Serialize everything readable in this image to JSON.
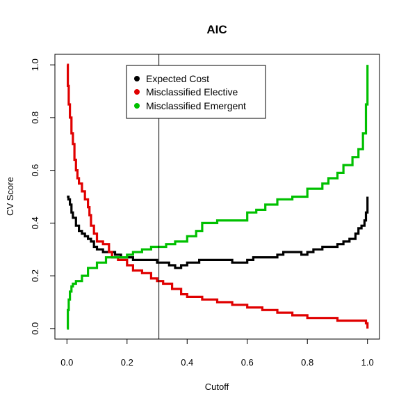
{
  "chart_data": {
    "type": "line",
    "title": "AIC",
    "xlabel": "Cutoff",
    "ylabel": "CV Score",
    "xlim": [
      -0.04,
      1.04
    ],
    "ylim": [
      -0.04,
      1.04
    ],
    "x_ticks": [
      "0.0",
      "0.2",
      "0.4",
      "0.6",
      "0.8",
      "1.0"
    ],
    "y_ticks": [
      "0.0",
      "0.2",
      "0.4",
      "0.6",
      "0.8",
      "1.0"
    ],
    "grid": false,
    "legend_position": "top-center",
    "vline_x": 0.306,
    "series": [
      {
        "name": "Expected Cost",
        "color": "#000000",
        "x": [
          0,
          0.005,
          0.01,
          0.015,
          0.02,
          0.03,
          0.04,
          0.05,
          0.06,
          0.07,
          0.08,
          0.09,
          0.1,
          0.12,
          0.14,
          0.16,
          0.18,
          0.2,
          0.22,
          0.24,
          0.26,
          0.28,
          0.3,
          0.32,
          0.34,
          0.36,
          0.38,
          0.4,
          0.42,
          0.44,
          0.46,
          0.5,
          0.55,
          0.58,
          0.6,
          0.62,
          0.65,
          0.7,
          0.72,
          0.75,
          0.78,
          0.8,
          0.82,
          0.85,
          0.88,
          0.9,
          0.92,
          0.94,
          0.96,
          0.97,
          0.98,
          0.99,
          0.995,
          1.0
        ],
        "y": [
          0.5,
          0.49,
          0.47,
          0.44,
          0.42,
          0.39,
          0.37,
          0.36,
          0.35,
          0.34,
          0.33,
          0.31,
          0.3,
          0.29,
          0.29,
          0.28,
          0.27,
          0.27,
          0.26,
          0.26,
          0.26,
          0.26,
          0.25,
          0.25,
          0.24,
          0.23,
          0.24,
          0.25,
          0.25,
          0.26,
          0.26,
          0.26,
          0.25,
          0.25,
          0.26,
          0.27,
          0.27,
          0.28,
          0.29,
          0.29,
          0.28,
          0.29,
          0.3,
          0.31,
          0.31,
          0.32,
          0.33,
          0.34,
          0.36,
          0.38,
          0.39,
          0.41,
          0.44,
          0.5
        ]
      },
      {
        "name": "Misclassified Elective",
        "color": "#e00000",
        "x": [
          0,
          0.003,
          0.006,
          0.01,
          0.015,
          0.02,
          0.025,
          0.03,
          0.035,
          0.04,
          0.05,
          0.06,
          0.07,
          0.075,
          0.08,
          0.09,
          0.1,
          0.12,
          0.14,
          0.15,
          0.17,
          0.2,
          0.22,
          0.25,
          0.28,
          0.3,
          0.32,
          0.35,
          0.38,
          0.4,
          0.45,
          0.5,
          0.55,
          0.6,
          0.65,
          0.7,
          0.75,
          0.8,
          0.85,
          0.9,
          0.95,
          0.995,
          1.0
        ],
        "y": [
          1.0,
          0.92,
          0.85,
          0.8,
          0.74,
          0.7,
          0.64,
          0.6,
          0.57,
          0.55,
          0.52,
          0.49,
          0.46,
          0.43,
          0.39,
          0.36,
          0.33,
          0.32,
          0.29,
          0.27,
          0.26,
          0.24,
          0.22,
          0.21,
          0.19,
          0.18,
          0.17,
          0.15,
          0.13,
          0.12,
          0.11,
          0.1,
          0.09,
          0.08,
          0.07,
          0.06,
          0.05,
          0.04,
          0.04,
          0.03,
          0.03,
          0.02,
          0.0
        ]
      },
      {
        "name": "Misclassified Emergent",
        "color": "#00c000",
        "x": [
          0,
          0.003,
          0.006,
          0.01,
          0.015,
          0.02,
          0.03,
          0.05,
          0.07,
          0.1,
          0.13,
          0.16,
          0.2,
          0.22,
          0.25,
          0.28,
          0.3,
          0.33,
          0.36,
          0.4,
          0.43,
          0.45,
          0.5,
          0.55,
          0.6,
          0.63,
          0.66,
          0.7,
          0.75,
          0.8,
          0.85,
          0.87,
          0.9,
          0.92,
          0.95,
          0.97,
          0.985,
          0.995,
          1.0
        ],
        "y": [
          0.0,
          0.07,
          0.11,
          0.14,
          0.16,
          0.17,
          0.18,
          0.2,
          0.23,
          0.25,
          0.27,
          0.27,
          0.28,
          0.29,
          0.3,
          0.31,
          0.31,
          0.32,
          0.33,
          0.35,
          0.37,
          0.4,
          0.41,
          0.41,
          0.44,
          0.45,
          0.47,
          0.49,
          0.5,
          0.53,
          0.55,
          0.57,
          0.59,
          0.62,
          0.65,
          0.68,
          0.74,
          0.85,
          1.0
        ]
      }
    ]
  }
}
